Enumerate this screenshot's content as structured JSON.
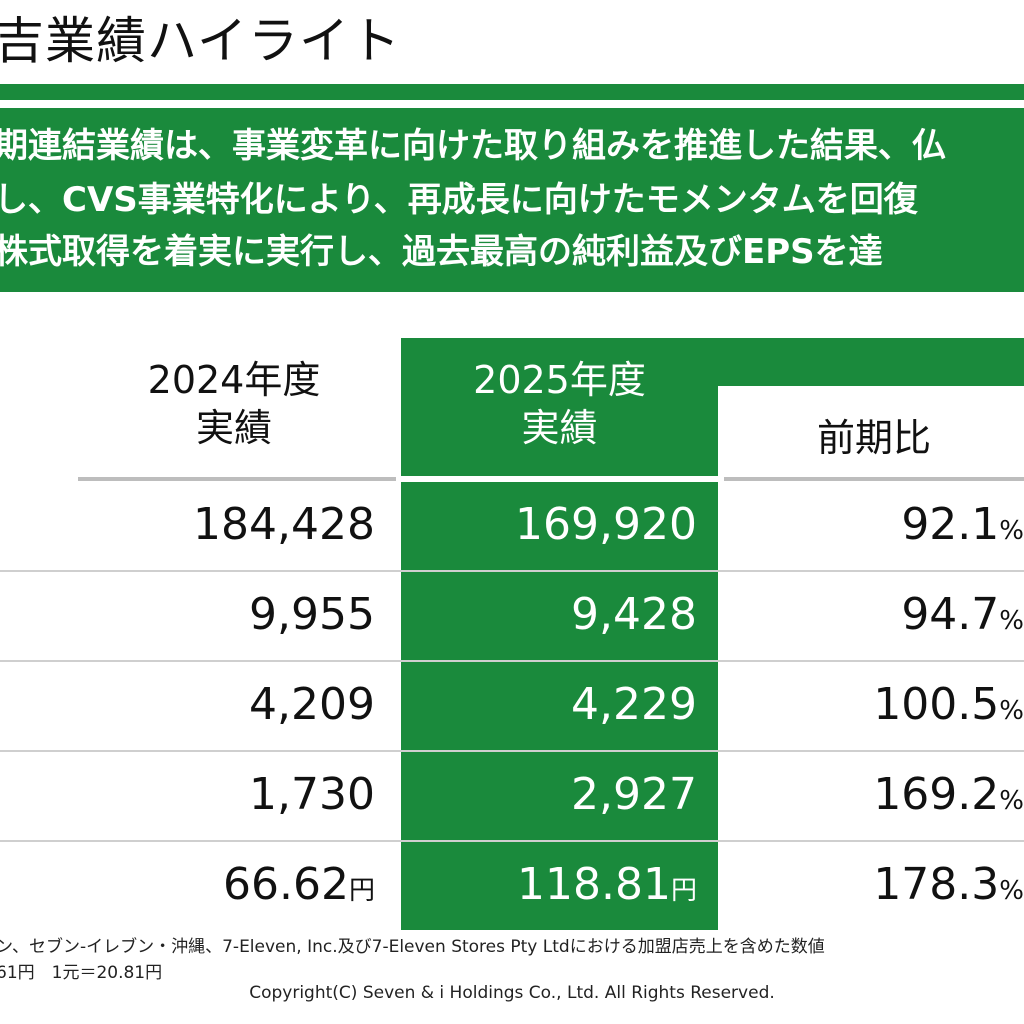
{
  "title": "吉業績ハイライト",
  "banner": {
    "line1": "期連結業績は、事業変革に向けた取り組みを推進した結果、仏",
    "line2": "し、CVS事業特化により、再成長に向けたモメンタムを回復",
    "line3": "株式取得を着実に実行し、過去最高の純利益及びEPSを達"
  },
  "headers": {
    "prev": [
      "2024年度",
      "実績"
    ],
    "cur": [
      "2025年度",
      "実績"
    ],
    "ratio": "前期比"
  },
  "rows": [
    {
      "prev": "184,428",
      "prev_unit": "",
      "cur": "169,920",
      "cur_unit": "",
      "ratio": "92.1",
      "ratio_unit": "%"
    },
    {
      "prev": "9,955",
      "prev_unit": "",
      "cur": "9,428",
      "cur_unit": "",
      "ratio": "94.7",
      "ratio_unit": "%"
    },
    {
      "prev": "4,209",
      "prev_unit": "",
      "cur": "4,229",
      "cur_unit": "",
      "ratio": "100.5",
      "ratio_unit": "%"
    },
    {
      "prev": "1,730",
      "prev_unit": "",
      "cur": "2,927",
      "cur_unit": "",
      "ratio": "169.2",
      "ratio_unit": "%"
    },
    {
      "prev": "66.62",
      "prev_unit": "円",
      "cur": "118.81",
      "cur_unit": "円",
      "ratio": "178.3",
      "ratio_unit": "%"
    }
  ],
  "footnotes": {
    "line1": "ン、セブン-イレブン・沖縄、7-Eleven, Inc.及び7-Eleven Stores Pty Ltdにおける加盟店売上を含めた数値",
    "line2": "61円　1元＝20.81円"
  },
  "copyright": "Copyright(C) Seven & i Holdings Co., Ltd. All Rights Reserved.",
  "colors": {
    "accent_green": "#1a8a3c",
    "rule_gray": "#cfcfcf"
  }
}
